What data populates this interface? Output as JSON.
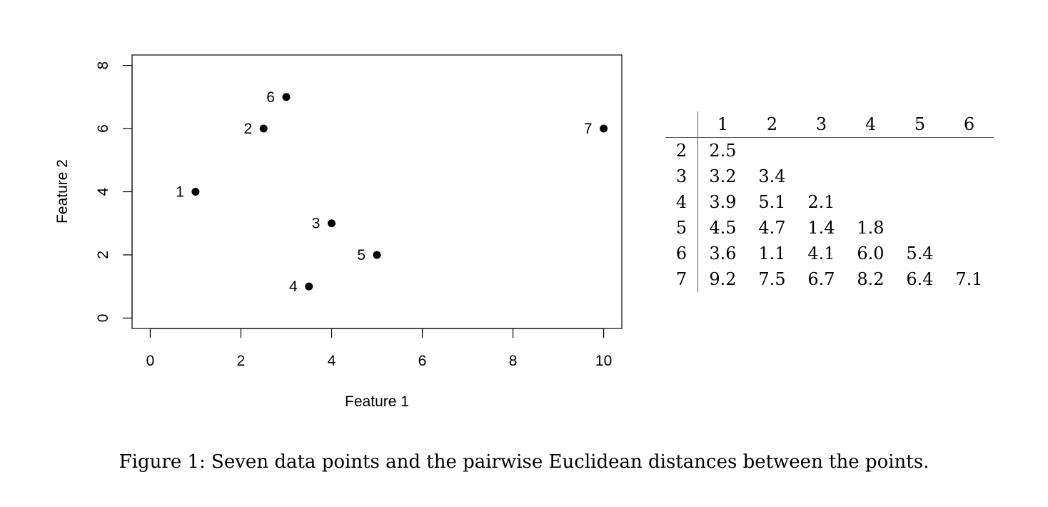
{
  "chart_data": [
    {
      "type": "scatter",
      "title": "",
      "xlabel": "Feature 1",
      "ylabel": "Feature 2",
      "xlim": [
        -0.4,
        10.4
      ],
      "ylim": [
        -0.33,
        8.33
      ],
      "xticks": [
        "0",
        "2",
        "4",
        "6",
        "8",
        "10"
      ],
      "yticks": [
        "0",
        "2",
        "4",
        "6",
        "8"
      ],
      "grid": false,
      "points": [
        {
          "label": "1",
          "x": 1,
          "y": 4
        },
        {
          "label": "2",
          "x": 2.5,
          "y": 6
        },
        {
          "label": "3",
          "x": 4,
          "y": 3
        },
        {
          "label": "4",
          "x": 3.5,
          "y": 1
        },
        {
          "label": "5",
          "x": 5,
          "y": 2
        },
        {
          "label": "6",
          "x": 3,
          "y": 7
        },
        {
          "label": "7",
          "x": 10,
          "y": 6
        }
      ]
    },
    {
      "type": "table",
      "columns": [
        "1",
        "2",
        "3",
        "4",
        "5",
        "6"
      ],
      "rows": [
        {
          "label": "2",
          "values": [
            "2.5",
            "",
            "",
            "",
            "",
            ""
          ]
        },
        {
          "label": "3",
          "values": [
            "3.2",
            "3.4",
            "",
            "",
            "",
            ""
          ]
        },
        {
          "label": "4",
          "values": [
            "3.9",
            "5.1",
            "2.1",
            "",
            "",
            ""
          ]
        },
        {
          "label": "5",
          "values": [
            "4.5",
            "4.7",
            "1.4",
            "1.8",
            "",
            ""
          ]
        },
        {
          "label": "6",
          "values": [
            "3.6",
            "1.1",
            "4.1",
            "6.0",
            "5.4",
            ""
          ]
        },
        {
          "label": "7",
          "values": [
            "9.2",
            "7.5",
            "6.7",
            "8.2",
            "6.4",
            "7.1"
          ]
        }
      ]
    }
  ],
  "caption": "Figure 1: Seven data points and the pairwise Euclidean distances between the points."
}
